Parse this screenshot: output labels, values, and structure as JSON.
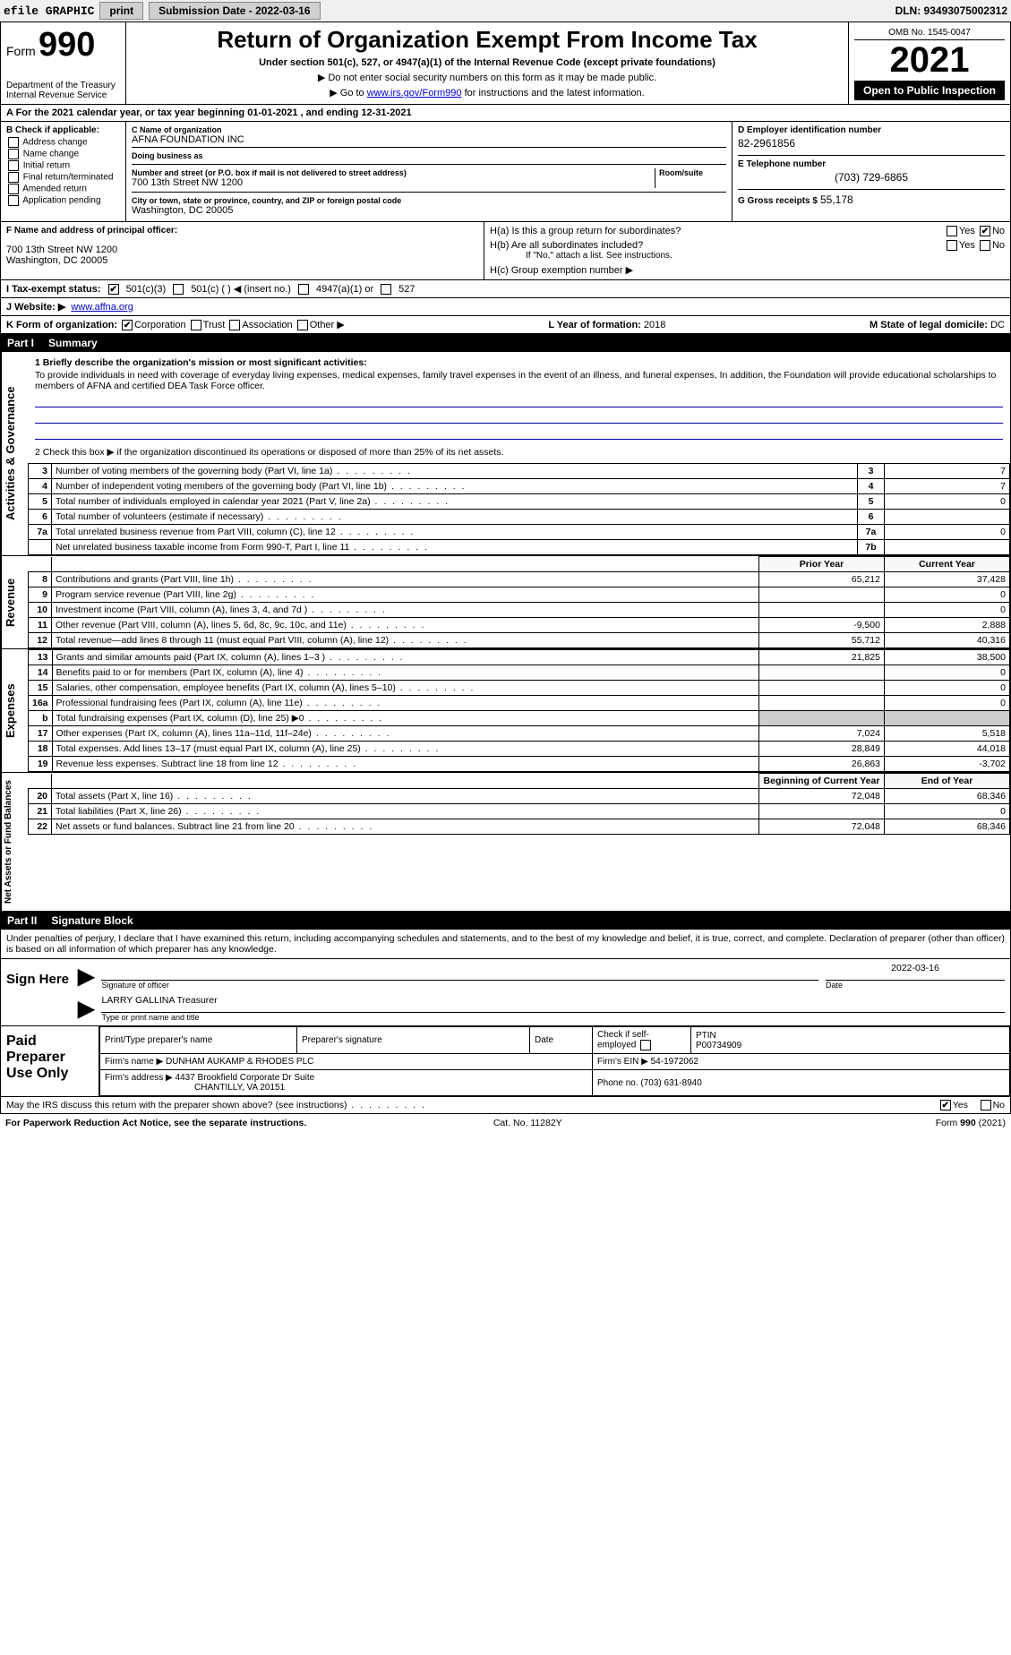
{
  "topbar": {
    "efile": "efile GRAPHIC",
    "print": "print",
    "submission_label": "Submission Date - 2022-03-16",
    "dln": "DLN: 93493075002312"
  },
  "header": {
    "form_label": "Form",
    "form_number": "990",
    "title": "Return of Organization Exempt From Income Tax",
    "subtitle": "Under section 501(c), 527, or 4947(a)(1) of the Internal Revenue Code (except private foundations)",
    "line1": "▶ Do not enter social security numbers on this form as it may be made public.",
    "line2_pre": "▶ Go to ",
    "line2_link": "www.irs.gov/Form990",
    "line2_post": " for instructions and the latest information.",
    "dept": "Department of the Treasury",
    "irs": "Internal Revenue Service",
    "omb": "OMB No. 1545-0047",
    "year": "2021",
    "open": "Open to Public Inspection"
  },
  "period": {
    "text_pre": "A For the 2021 calendar year, or tax year beginning ",
    "begin": "01-01-2021",
    "mid": " , and ending ",
    "end": "12-31-2021"
  },
  "box_b": {
    "header": "B Check if applicable:",
    "opts": [
      "Address change",
      "Name change",
      "Initial return",
      "Final return/terminated",
      "Amended return",
      "Application pending"
    ]
  },
  "box_c": {
    "name_label": "C Name of organization",
    "name": "AFNA FOUNDATION INC",
    "dba_label": "Doing business as",
    "dba": "",
    "addr_label": "Number and street (or P.O. box if mail is not delivered to street address)",
    "room_label": "Room/suite",
    "addr": "700 13th Street NW 1200",
    "city_label": "City or town, state or province, country, and ZIP or foreign postal code",
    "city": "Washington, DC  20005"
  },
  "box_d": {
    "label": "D Employer identification number",
    "value": "82-2961856"
  },
  "box_e": {
    "label": "E Telephone number",
    "value": "(703) 729-6865"
  },
  "box_g": {
    "label": "G Gross receipts $",
    "value": "55,178"
  },
  "box_f": {
    "label": "F  Name and address of principal officer:",
    "addr1": "700 13th Street NW 1200",
    "addr2": "Washington, DC  20005"
  },
  "box_h": {
    "a": "H(a)  Is this a group return for subordinates?",
    "b": "H(b)  Are all subordinates included?",
    "note": "If \"No,\" attach a list. See instructions.",
    "c": "H(c)  Group exemption number ▶",
    "yes": "Yes",
    "no": "No"
  },
  "line_i": {
    "label": "I  Tax-exempt status:",
    "opts": [
      "501(c)(3)",
      "501(c) (   ) ◀ (insert no.)",
      "4947(a)(1) or",
      "527"
    ]
  },
  "line_j": {
    "label": "J  Website: ▶",
    "value": "www.affna.org"
  },
  "line_k": {
    "label": "K Form of organization:",
    "opts": [
      "Corporation",
      "Trust",
      "Association",
      "Other ▶"
    ]
  },
  "line_l": {
    "label": "L Year of formation:",
    "value": "2018"
  },
  "line_m": {
    "label": "M State of legal domicile:",
    "value": "DC"
  },
  "part1": {
    "header_num": "Part I",
    "header_title": "Summary",
    "tab_activities": "Activities & Governance",
    "tab_revenue": "Revenue",
    "tab_expenses": "Expenses",
    "tab_netassets": "Net Assets or Fund Balances",
    "q1_label": "1  Briefly describe the organization's mission or most significant activities:",
    "q1_text": "To provide individuals in need with coverage of everyday living expenses, medical expenses, family travel expenses in the event of an illness, and funeral expenses, In addition, the Foundation will provide educational scholarships to members of AFNA and certified DEA Task Force officer.",
    "q2": "2   Check this box ▶        if the organization discontinued its operations or disposed of more than 25% of its net assets.",
    "rows_top": [
      {
        "n": "3",
        "label": "Number of voting members of the governing body (Part VI, line 1a)",
        "box": "3",
        "val": "7"
      },
      {
        "n": "4",
        "label": "Number of independent voting members of the governing body (Part VI, line 1b)",
        "box": "4",
        "val": "7"
      },
      {
        "n": "5",
        "label": "Total number of individuals employed in calendar year 2021 (Part V, line 2a)",
        "box": "5",
        "val": "0"
      },
      {
        "n": "6",
        "label": "Total number of volunteers (estimate if necessary)",
        "box": "6",
        "val": ""
      },
      {
        "n": "7a",
        "label": "Total unrelated business revenue from Part VIII, column (C), line 12",
        "box": "7a",
        "val": "0"
      },
      {
        "n": "",
        "label": "Net unrelated business taxable income from Form 990-T, Part I, line 11",
        "box": "7b",
        "val": ""
      }
    ],
    "col_prior": "Prior Year",
    "col_current": "Current Year",
    "revenue_rows": [
      {
        "n": "8",
        "label": "Contributions and grants (Part VIII, line 1h)",
        "prior": "65,212",
        "curr": "37,428"
      },
      {
        "n": "9",
        "label": "Program service revenue (Part VIII, line 2g)",
        "prior": "",
        "curr": "0"
      },
      {
        "n": "10",
        "label": "Investment income (Part VIII, column (A), lines 3, 4, and 7d )",
        "prior": "",
        "curr": "0"
      },
      {
        "n": "11",
        "label": "Other revenue (Part VIII, column (A), lines 5, 6d, 8c, 9c, 10c, and 11e)",
        "prior": "-9,500",
        "curr": "2,888"
      },
      {
        "n": "12",
        "label": "Total revenue—add lines 8 through 11 (must equal Part VIII, column (A), line 12)",
        "prior": "55,712",
        "curr": "40,316"
      }
    ],
    "expense_rows": [
      {
        "n": "13",
        "label": "Grants and similar amounts paid (Part IX, column (A), lines 1–3 )",
        "prior": "21,825",
        "curr": "38,500"
      },
      {
        "n": "14",
        "label": "Benefits paid to or for members (Part IX, column (A), line 4)",
        "prior": "",
        "curr": "0"
      },
      {
        "n": "15",
        "label": "Salaries, other compensation, employee benefits (Part IX, column (A), lines 5–10)",
        "prior": "",
        "curr": "0"
      },
      {
        "n": "16a",
        "label": "Professional fundraising fees (Part IX, column (A), line 11e)",
        "prior": "",
        "curr": "0"
      },
      {
        "n": "b",
        "label": "Total fundraising expenses (Part IX, column (D), line 25) ▶0",
        "prior": "—",
        "curr": "—"
      },
      {
        "n": "17",
        "label": "Other expenses (Part IX, column (A), lines 11a–11d, 11f–24e)",
        "prior": "7,024",
        "curr": "5,518"
      },
      {
        "n": "18",
        "label": "Total expenses. Add lines 13–17 (must equal Part IX, column (A), line 25)",
        "prior": "28,849",
        "curr": "44,018"
      },
      {
        "n": "19",
        "label": "Revenue less expenses. Subtract line 18 from line 12",
        "prior": "26,863",
        "curr": "-3,702"
      }
    ],
    "col_begin": "Beginning of Current Year",
    "col_end": "End of Year",
    "net_rows": [
      {
        "n": "20",
        "label": "Total assets (Part X, line 16)",
        "prior": "72,048",
        "curr": "68,346"
      },
      {
        "n": "21",
        "label": "Total liabilities (Part X, line 26)",
        "prior": "",
        "curr": "0"
      },
      {
        "n": "22",
        "label": "Net assets or fund balances. Subtract line 21 from line 20",
        "prior": "72,048",
        "curr": "68,346"
      }
    ]
  },
  "part2": {
    "header_num": "Part II",
    "header_title": "Signature Block",
    "decl": "Under penalties of perjury, I declare that I have examined this return, including accompanying schedules and statements, and to the best of my knowledge and belief, it is true, correct, and complete. Declaration of preparer (other than officer) is based on all information of which preparer has any knowledge.",
    "sign_here": "Sign Here",
    "sig_officer": "Signature of officer",
    "date": "Date",
    "sig_date": "2022-03-16",
    "name_title": "LARRY GALLINA  Treasurer",
    "name_title_lbl": "Type or print name and title",
    "paid": "Paid Preparer Use Only",
    "prep_name_lbl": "Print/Type preparer's name",
    "prep_sig_lbl": "Preparer's signature",
    "prep_date_lbl": "Date",
    "self_emp": "Check         if self-employed",
    "ptin_lbl": "PTIN",
    "ptin": "P00734909",
    "firm_name_lbl": "Firm's name    ▶",
    "firm_name": "DUNHAM AUKAMP & RHODES PLC",
    "firm_ein_lbl": "Firm's EIN ▶",
    "firm_ein": "54-1972062",
    "firm_addr_lbl": "Firm's address ▶",
    "firm_addr1": "4437 Brookfield Corporate Dr Suite",
    "firm_addr2": "CHANTILLY, VA  20151",
    "phone_lbl": "Phone no.",
    "phone": "(703) 631-8940",
    "discuss": "May the IRS discuss this return with the preparer shown above? (see instructions)",
    "yes": "Yes",
    "no": "No"
  },
  "footer": {
    "left": "For Paperwork Reduction Act Notice, see the separate instructions.",
    "mid": "Cat. No. 11282Y",
    "right": "Form 990 (2021)"
  },
  "colors": {
    "link": "#0000cc",
    "black": "#000000",
    "bg": "#ffffff"
  }
}
